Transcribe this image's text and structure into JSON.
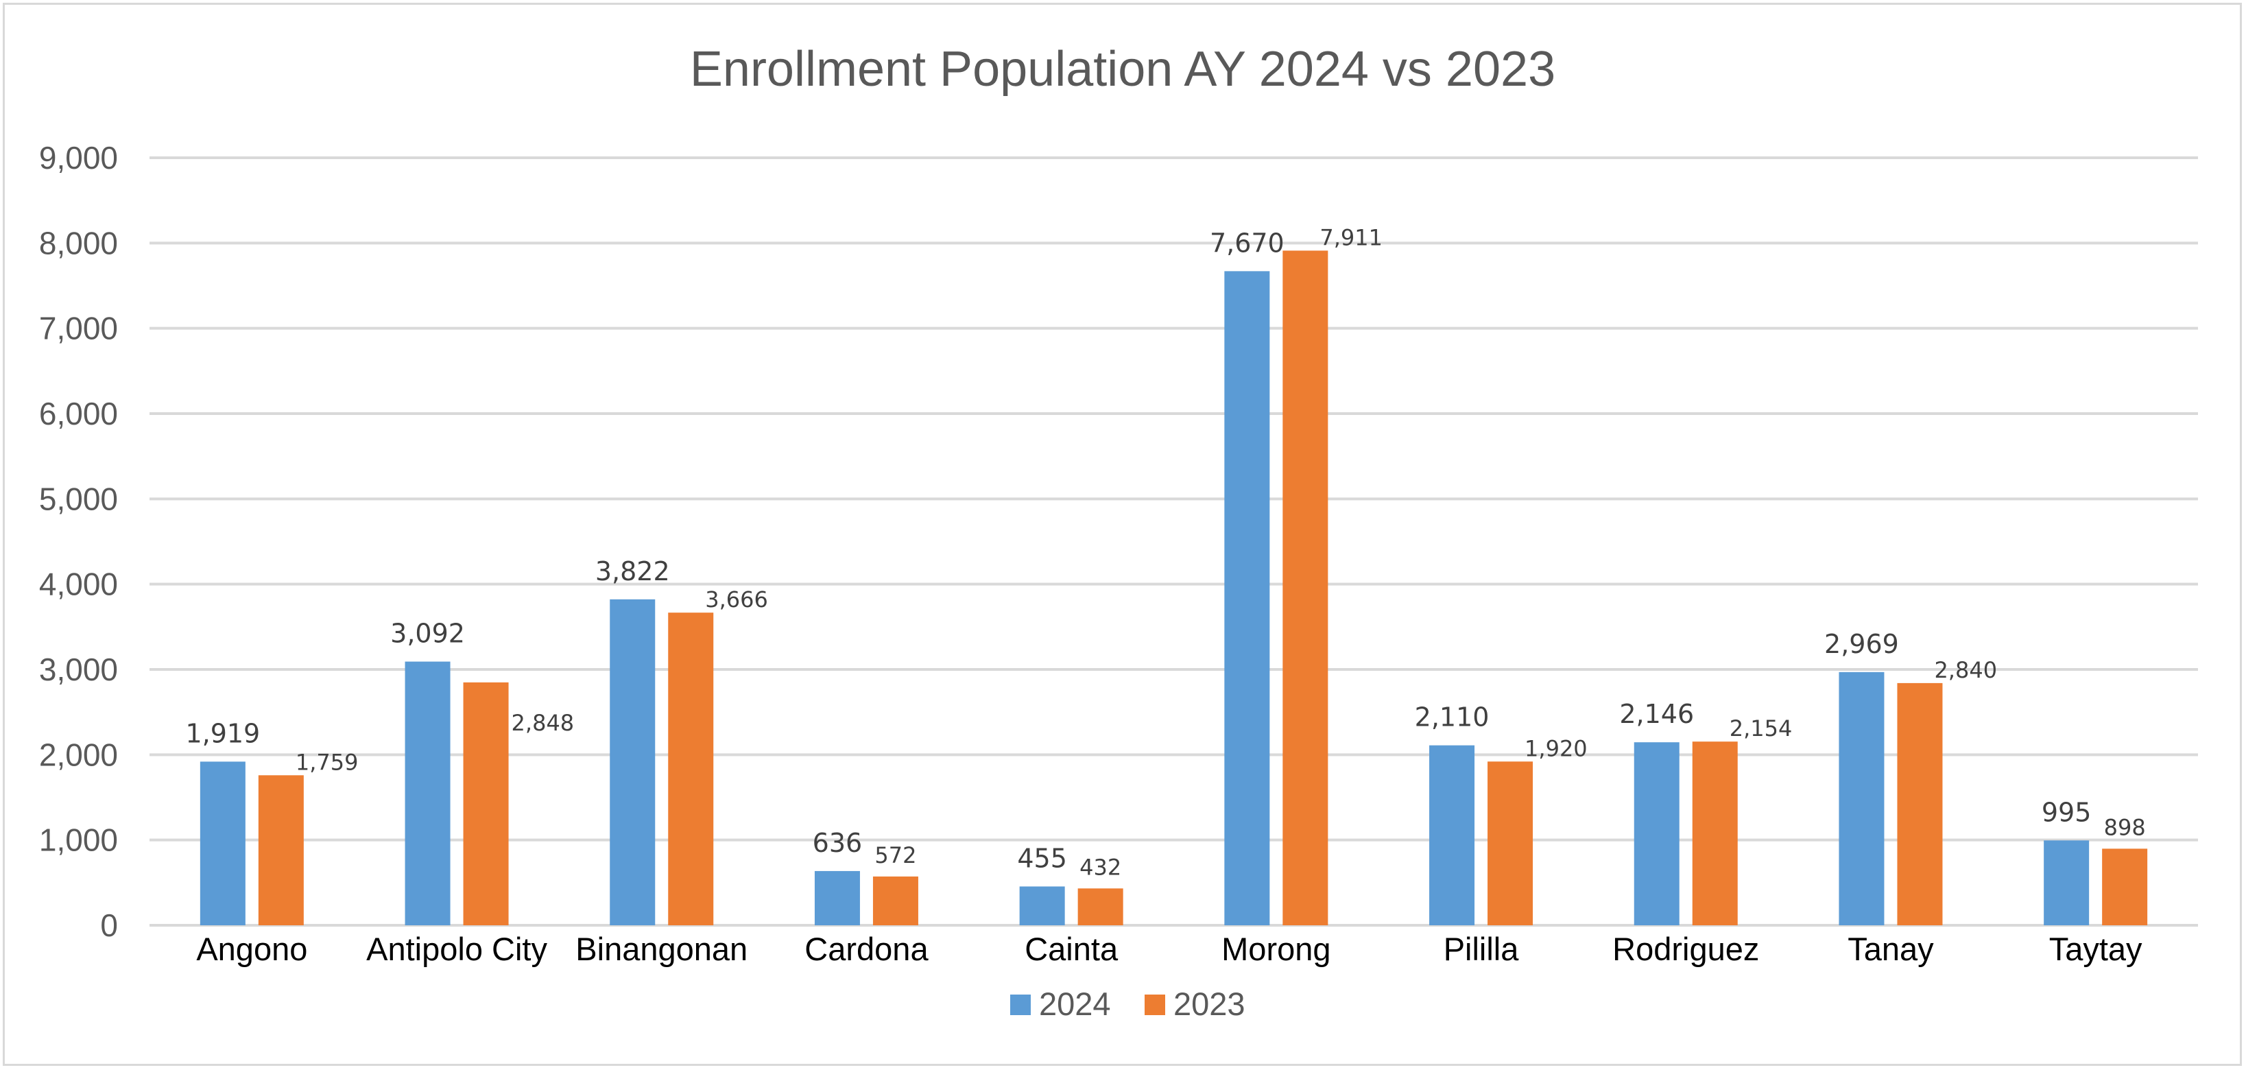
{
  "chart_data": {
    "type": "bar",
    "title": "Enrollment Population AY 2024 vs 2023",
    "categories": [
      "Angono",
      "Antipolo City",
      "Binangonan",
      "Cardona",
      "Cainta",
      "Morong",
      "Pililla",
      "Rodriguez",
      "Tanay",
      "Taytay"
    ],
    "series": [
      {
        "name": "2024",
        "color": "#5b9bd5",
        "values": [
          1919,
          3092,
          3822,
          636,
          455,
          7670,
          2110,
          2146,
          2969,
          995
        ],
        "labels": [
          "1,919",
          "3,092",
          "3,822",
          "636",
          "455",
          "7,670",
          "2,110",
          "2,146",
          "2,969",
          "995"
        ]
      },
      {
        "name": "2023",
        "color": "#ed7d31",
        "values": [
          1759,
          2848,
          3666,
          572,
          432,
          7911,
          1920,
          2154,
          2840,
          898
        ],
        "labels": [
          "1,759",
          "2,848",
          "3,666",
          "572",
          "432",
          "7,911",
          "1,920",
          "2,154",
          "2,840",
          "898"
        ]
      }
    ],
    "ylim": [
      0,
      9000
    ],
    "yticks": [
      0,
      1000,
      2000,
      3000,
      4000,
      5000,
      6000,
      7000,
      8000,
      9000
    ],
    "ytick_labels": [
      "0",
      "1,000",
      "2,000",
      "3,000",
      "4,000",
      "5,000",
      "6,000",
      "7,000",
      "8,000",
      "9,000"
    ],
    "xlabel": "",
    "ylabel": "",
    "grid": true,
    "legend_position": "bottom"
  }
}
